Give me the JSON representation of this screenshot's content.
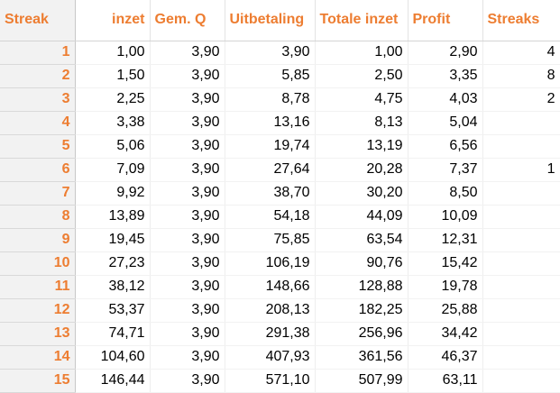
{
  "headers": [
    "Streak",
    "inzet",
    "Gem. Q",
    "Uitbetaling",
    "Totale inzet",
    "Profit",
    "Streaks"
  ],
  "colors": {
    "accent": "#ED7D31",
    "header_bg": "#F2F2F2"
  },
  "rows": [
    {
      "streak": "1",
      "inzet": "1,00",
      "gem_q": "3,90",
      "uitbetaling": "3,90",
      "totale_inzet": "1,00",
      "profit": "2,90",
      "streaks": "4"
    },
    {
      "streak": "2",
      "inzet": "1,50",
      "gem_q": "3,90",
      "uitbetaling": "5,85",
      "totale_inzet": "2,50",
      "profit": "3,35",
      "streaks": "8"
    },
    {
      "streak": "3",
      "inzet": "2,25",
      "gem_q": "3,90",
      "uitbetaling": "8,78",
      "totale_inzet": "4,75",
      "profit": "4,03",
      "streaks": "2"
    },
    {
      "streak": "4",
      "inzet": "3,38",
      "gem_q": "3,90",
      "uitbetaling": "13,16",
      "totale_inzet": "8,13",
      "profit": "5,04",
      "streaks": ""
    },
    {
      "streak": "5",
      "inzet": "5,06",
      "gem_q": "3,90",
      "uitbetaling": "19,74",
      "totale_inzet": "13,19",
      "profit": "6,56",
      "streaks": ""
    },
    {
      "streak": "6",
      "inzet": "7,09",
      "gem_q": "3,90",
      "uitbetaling": "27,64",
      "totale_inzet": "20,28",
      "profit": "7,37",
      "streaks": "1"
    },
    {
      "streak": "7",
      "inzet": "9,92",
      "gem_q": "3,90",
      "uitbetaling": "38,70",
      "totale_inzet": "30,20",
      "profit": "8,50",
      "streaks": ""
    },
    {
      "streak": "8",
      "inzet": "13,89",
      "gem_q": "3,90",
      "uitbetaling": "54,18",
      "totale_inzet": "44,09",
      "profit": "10,09",
      "streaks": ""
    },
    {
      "streak": "9",
      "inzet": "19,45",
      "gem_q": "3,90",
      "uitbetaling": "75,85",
      "totale_inzet": "63,54",
      "profit": "12,31",
      "streaks": ""
    },
    {
      "streak": "10",
      "inzet": "27,23",
      "gem_q": "3,90",
      "uitbetaling": "106,19",
      "totale_inzet": "90,76",
      "profit": "15,42",
      "streaks": ""
    },
    {
      "streak": "11",
      "inzet": "38,12",
      "gem_q": "3,90",
      "uitbetaling": "148,66",
      "totale_inzet": "128,88",
      "profit": "19,78",
      "streaks": ""
    },
    {
      "streak": "12",
      "inzet": "53,37",
      "gem_q": "3,90",
      "uitbetaling": "208,13",
      "totale_inzet": "182,25",
      "profit": "25,88",
      "streaks": ""
    },
    {
      "streak": "13",
      "inzet": "74,71",
      "gem_q": "3,90",
      "uitbetaling": "291,38",
      "totale_inzet": "256,96",
      "profit": "34,42",
      "streaks": ""
    },
    {
      "streak": "14",
      "inzet": "104,60",
      "gem_q": "3,90",
      "uitbetaling": "407,93",
      "totale_inzet": "361,56",
      "profit": "46,37",
      "streaks": ""
    },
    {
      "streak": "15",
      "inzet": "146,44",
      "gem_q": "3,90",
      "uitbetaling": "571,10",
      "totale_inzet": "507,99",
      "profit": "63,11",
      "streaks": ""
    }
  ]
}
